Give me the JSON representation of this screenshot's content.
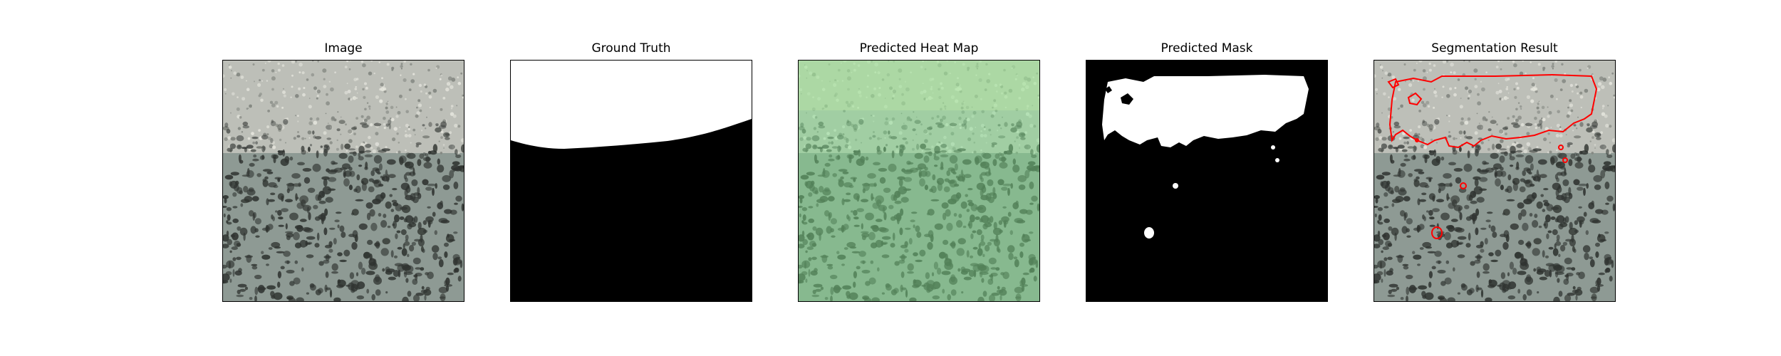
{
  "figure": {
    "panels": [
      {
        "title": "Image",
        "kind": "texture"
      },
      {
        "title": "Ground Truth",
        "kind": "ground-truth"
      },
      {
        "title": "Predicted Heat Map",
        "kind": "heatmap"
      },
      {
        "title": "Predicted Mask",
        "kind": "mask"
      },
      {
        "title": "Segmentation Result",
        "kind": "overlay"
      }
    ],
    "colors": {
      "mask_foreground": "#ffffff",
      "mask_background": "#000000",
      "heatmap_tint": "#7fe08a",
      "contour": "#ff0000",
      "texture_base": "#8e9a94",
      "texture_spots": "#2f3330",
      "texture_bright": "#c9cac2"
    }
  }
}
